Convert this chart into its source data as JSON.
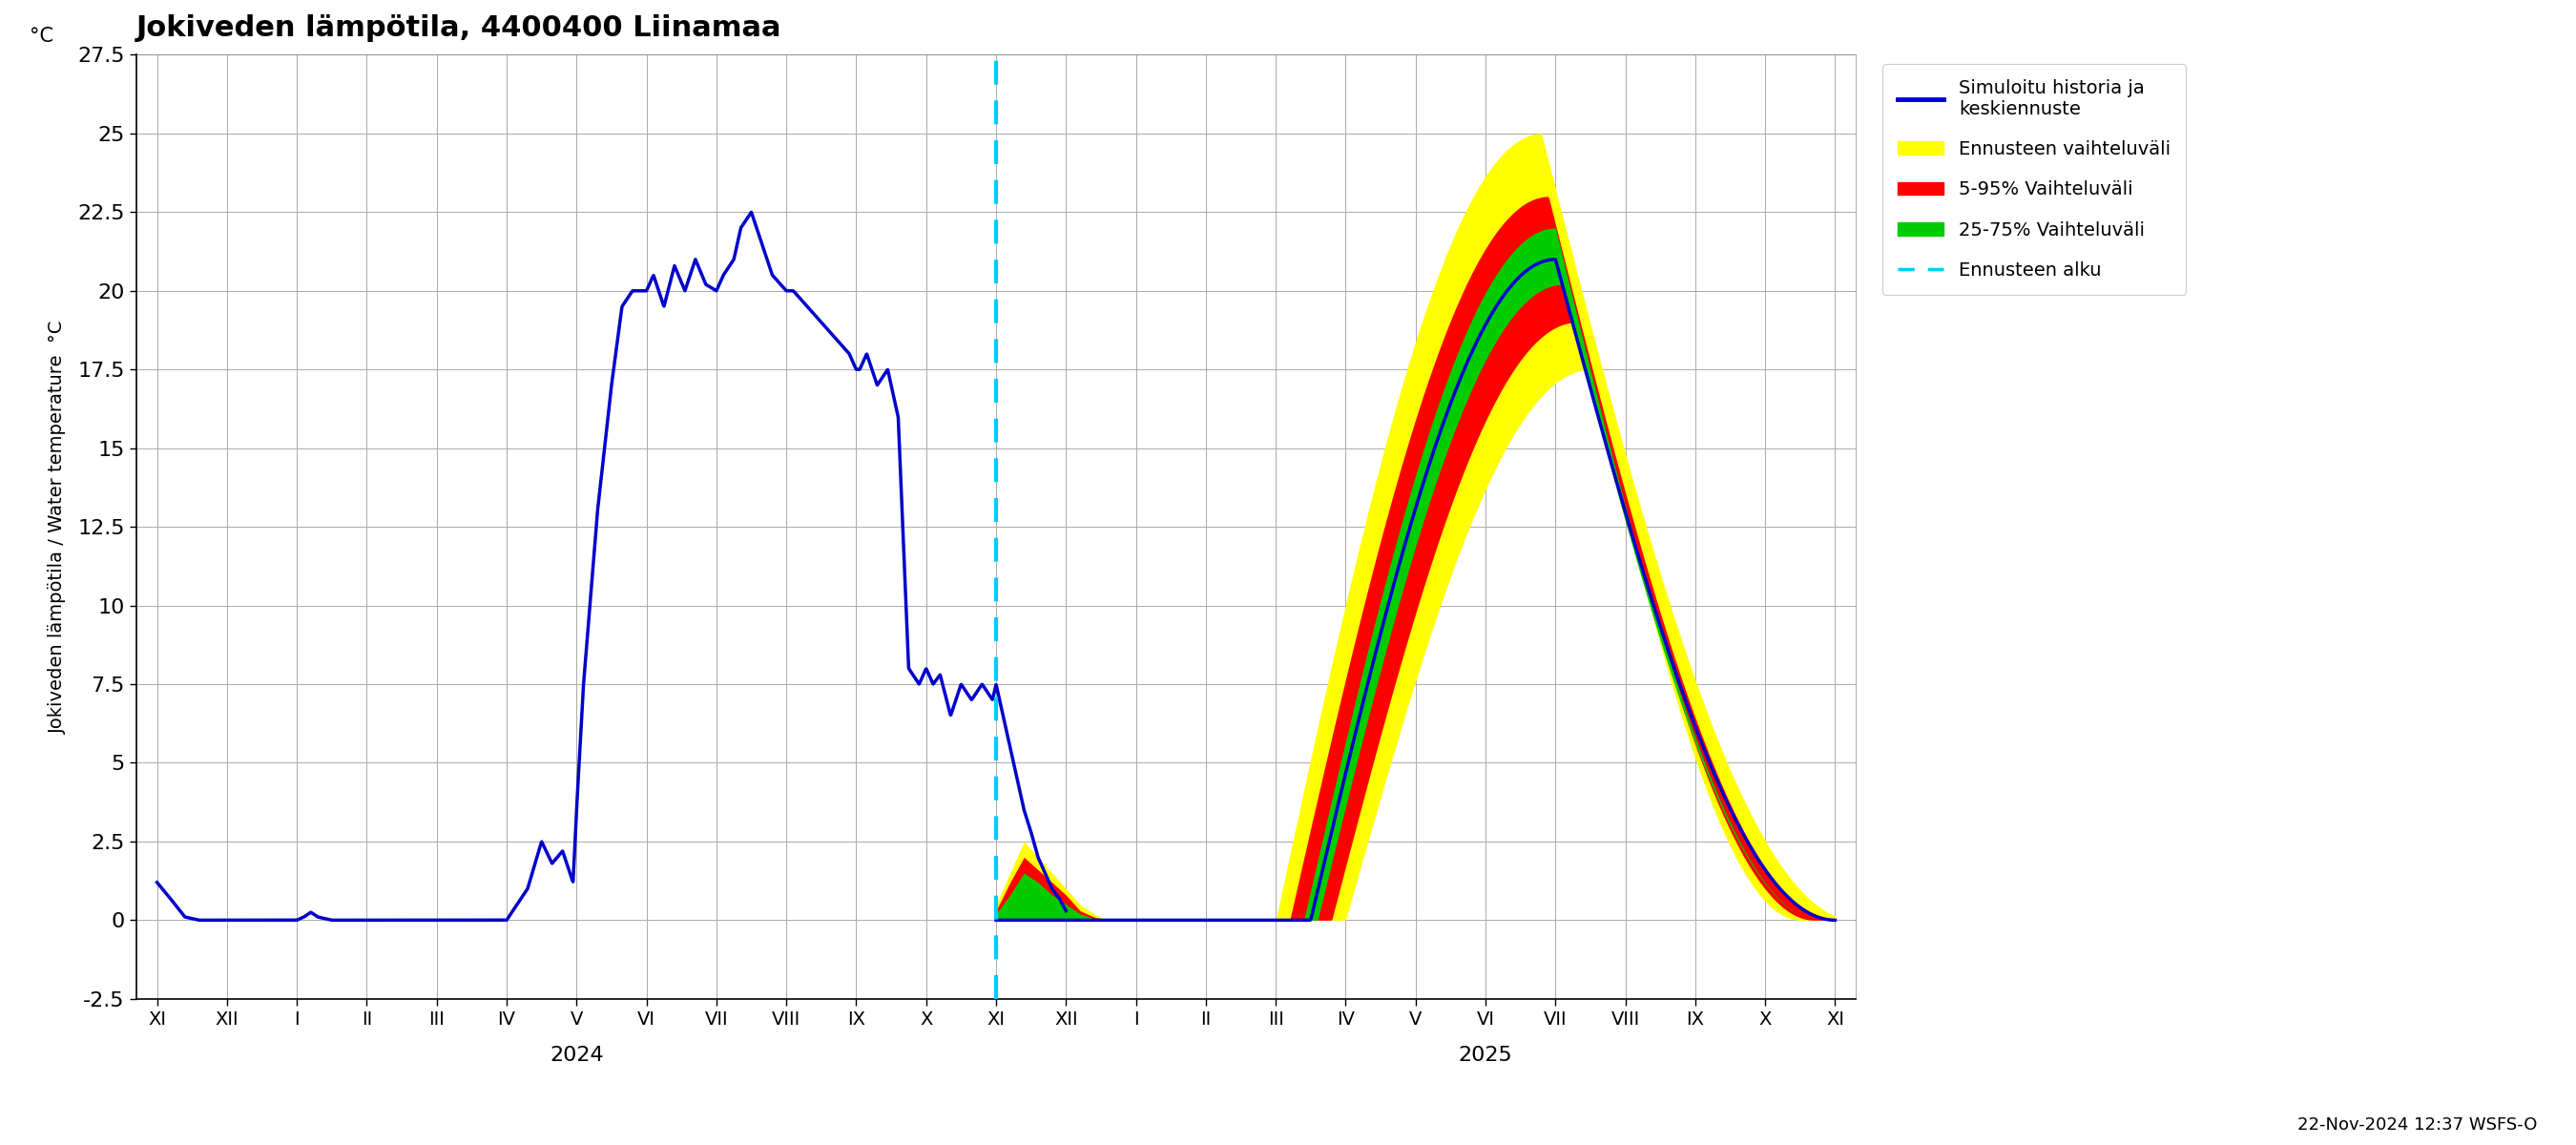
{
  "title": "Jokiveden lämpötila, 4400400 Liinamaa",
  "ylabel": "Jokiveden lämpötila / Water temperature  °C",
  "ylabel2": "°C",
  "ylim": [
    -2.5,
    27.5
  ],
  "yticks": [
    -2.5,
    0.0,
    2.5,
    5.0,
    7.5,
    10.0,
    12.5,
    15.0,
    17.5,
    20.0,
    22.5,
    25.0,
    27.5
  ],
  "footnote": "22-Nov-2024 12:37 WSFS-O",
  "legend_labels": [
    "Simuloitu historia ja\nkeskiennuste",
    "Ennusteen vaihteluväli",
    "5-95% Vaihteluväli",
    "25-75% Vaihteluväli",
    "Ennusteen alku"
  ],
  "legend_colors": [
    "#0000cc",
    "#ffff00",
    "#ff0000",
    "#00cc00",
    "#00ccff"
  ],
  "bg_color": "#ffffff",
  "grid_color": "#aaaaaa",
  "year_2024_label": "2024",
  "year_2025_label": "2025",
  "forecast_start_x": 12.0,
  "xlim": [
    -0.3,
    24.3
  ],
  "month_labels": [
    "XI",
    "XII",
    "I",
    "II",
    "III",
    "IV",
    "V",
    "VI",
    "VII",
    "VIII",
    "IX",
    "X",
    "XI",
    "XII",
    "I",
    "II",
    "III",
    "IV",
    "V",
    "VI",
    "VII",
    "VIII",
    "IX",
    "X",
    "XI"
  ],
  "tick_positions": [
    0,
    1,
    2,
    3,
    4,
    5,
    6,
    7,
    8,
    9,
    10,
    11,
    12,
    13,
    14,
    15,
    16,
    17,
    18,
    19,
    20,
    21,
    22,
    23,
    24
  ]
}
